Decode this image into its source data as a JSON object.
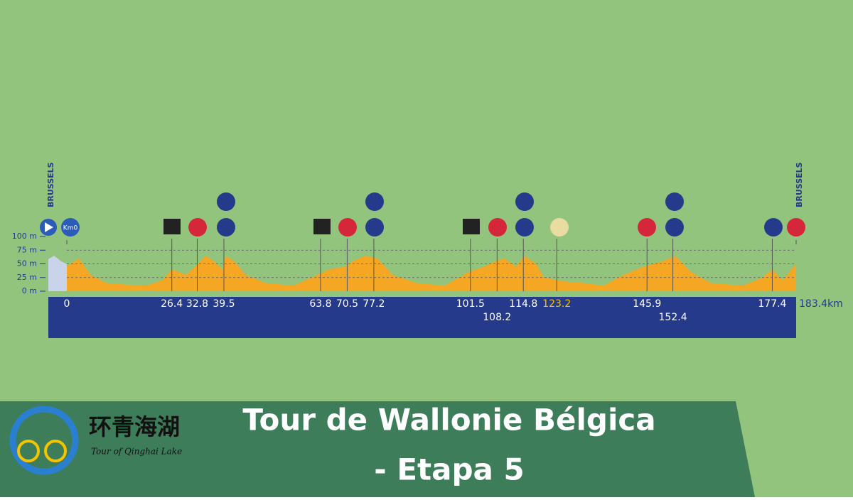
{
  "chart_data": {
    "type": "area",
    "start_label": "BRUSSELS",
    "finish_label": "BRUSSELS",
    "start_km_label": "Km0",
    "color": "#f5a623",
    "band_color": "#253a8a",
    "x": [
      0,
      3,
      6,
      10,
      15,
      20,
      24,
      26.4,
      30,
      33,
      35,
      37,
      39,
      40,
      42,
      45,
      50,
      57,
      63,
      66,
      70,
      72,
      75,
      78,
      82,
      88,
      95,
      101,
      105,
      108,
      110,
      113,
      115,
      118,
      120,
      125,
      130,
      135,
      140,
      145,
      150,
      153,
      157,
      162,
      170,
      175,
      177.4,
      180,
      183.4
    ],
    "values": [
      45,
      60,
      30,
      15,
      12,
      10,
      20,
      40,
      30,
      50,
      65,
      55,
      40,
      65,
      55,
      30,
      15,
      10,
      30,
      40,
      45,
      55,
      65,
      60,
      30,
      15,
      10,
      35,
      45,
      55,
      60,
      45,
      65,
      50,
      25,
      18,
      15,
      10,
      30,
      45,
      55,
      65,
      35,
      15,
      10,
      25,
      40,
      20,
      50
    ],
    "xlim": [
      0,
      183.4
    ],
    "ylim": [
      0,
      100
    ],
    "yticks": [
      {
        "value": 0,
        "label": "0 m"
      },
      {
        "value": 25,
        "label": "25 m"
      },
      {
        "value": 50,
        "label": "50 m"
      },
      {
        "value": 75,
        "label": "75 m"
      },
      {
        "value": 100,
        "label": "100 m"
      }
    ],
    "xticks": [
      0,
      26.4,
      32.8,
      39.5,
      63.8,
      70.5,
      77.2,
      101.5,
      108.2,
      114.8,
      123.2,
      145.9,
      152.4,
      177.4,
      {
        "value": 183.4,
        "label": "183.4km"
      }
    ]
  },
  "banner": {
    "title_line1": "Tour de Wallonie Bélgica",
    "title_line2": "- Etapa 5",
    "logo_cn": "环青海湖",
    "logo_en": "Tour of Qinghai Lake"
  }
}
